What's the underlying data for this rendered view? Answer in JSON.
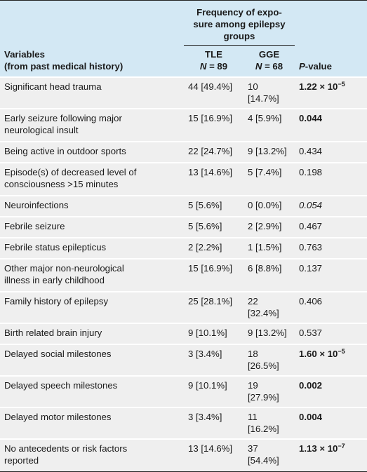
{
  "header": {
    "variables": [
      "Variables",
      "(from past medical history)"
    ],
    "group_title": [
      "Frequency of expo-",
      "sure among epilepsy",
      "groups"
    ],
    "tle": {
      "name": "TLE",
      "n_symbol": "N",
      "n_value": " = 89"
    },
    "gge": {
      "name": "GGE",
      "n_symbol": "N",
      "n_value": " = 68"
    },
    "p_value": {
      "symbol": "P",
      "rest": "-value"
    }
  },
  "table": {
    "rows": [
      {
        "variable": [
          "Significant head trauma"
        ],
        "tle": "44 [49.4%]",
        "gge": "10 [14.7%]",
        "p": {
          "text": "1.22 × 10",
          "exponent": "−5",
          "style": "bold"
        }
      },
      {
        "variable": [
          "Early seizure following major",
          "neurological insult"
        ],
        "tle": "15 [16.9%]",
        "gge": "4 [5.9%]",
        "p": {
          "text": "0.044",
          "style": "bold"
        }
      },
      {
        "variable": [
          "Being active in outdoor sports"
        ],
        "tle": "22 [24.7%]",
        "gge": "9 [13.2%]",
        "p": {
          "text": "0.434"
        }
      },
      {
        "variable": [
          "Episode(s) of decreased level of",
          "consciousness >15 minutes"
        ],
        "tle": "13 [14.6%]",
        "gge": "5 [7.4%]",
        "p": {
          "text": "0.198"
        }
      },
      {
        "variable": [
          "Neuroinfections"
        ],
        "tle": "5 [5.6%]",
        "gge": "0 [0.0%]",
        "p": {
          "text": "0.054",
          "style": "italic"
        }
      },
      {
        "variable": [
          "Febrile seizure"
        ],
        "tle": "5 [5.6%]",
        "gge": "2 [2.9%]",
        "p": {
          "text": "0.467"
        }
      },
      {
        "variable": [
          "Febrile status epilepticus"
        ],
        "tle": "2 [2.2%]",
        "gge": "1 [1.5%]",
        "p": {
          "text": "0.763"
        }
      },
      {
        "variable": [
          "Other major non-neurological",
          "illness in early childhood"
        ],
        "tle": "15 [16.9%]",
        "gge": "6 [8.8%]",
        "p": {
          "text": "0.137"
        }
      },
      {
        "variable": [
          "Family history of epilepsy"
        ],
        "tle": "25 [28.1%]",
        "gge": "22 [32.4%]",
        "p": {
          "text": "0.406"
        }
      },
      {
        "variable": [
          "Birth related brain injury"
        ],
        "tle": "9 [10.1%]",
        "gge": "9 [13.2%]",
        "p": {
          "text": "0.537"
        }
      },
      {
        "variable": [
          "Delayed social milestones"
        ],
        "tle": "3 [3.4%]",
        "gge": "18 [26.5%]",
        "p": {
          "text": "1.60 × 10",
          "exponent": "−5",
          "style": "bold"
        }
      },
      {
        "variable": [
          "Delayed speech milestones"
        ],
        "tle": "9 [10.1%]",
        "gge": "19 [27.9%]",
        "p": {
          "text": "0.002",
          "style": "bold"
        }
      },
      {
        "variable": [
          "Delayed motor milestones"
        ],
        "tle": "3 [3.4%]",
        "gge": "11 [16.2%]",
        "p": {
          "text": "0.004",
          "style": "bold"
        }
      },
      {
        "variable": [
          "No antecedents or risk factors",
          "reported"
        ],
        "tle": "13 [14.6%]",
        "gge": "37 [54.4%]",
        "p": {
          "text": "1.13 × 10",
          "exponent": "−7",
          "style": "bold"
        }
      }
    ]
  }
}
